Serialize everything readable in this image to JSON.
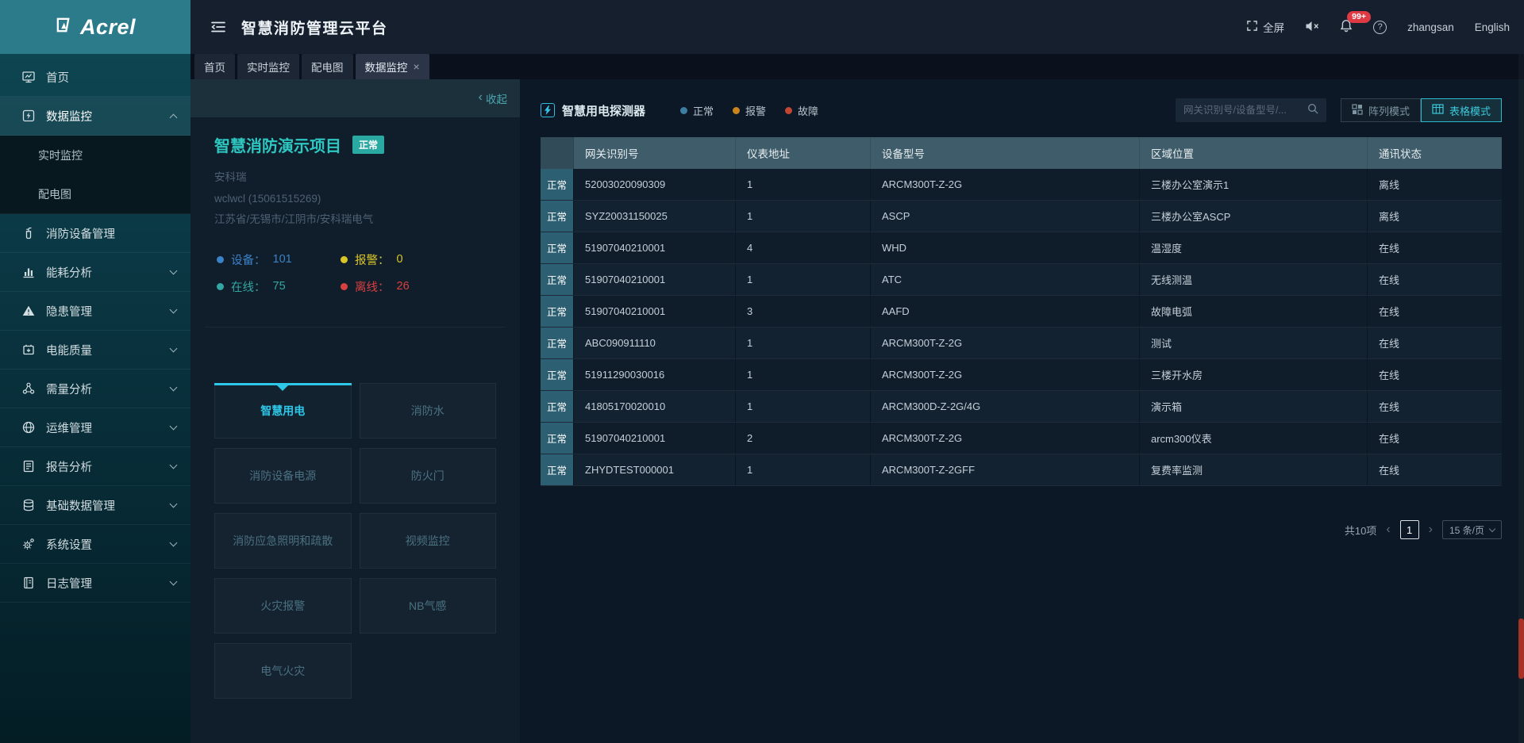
{
  "brand": {
    "logo": "Acrel"
  },
  "header": {
    "title": "智慧消防管理云平台",
    "fullscreen_label": "全屏",
    "notification_badge": "99+",
    "username": "zhangsan",
    "language": "English"
  },
  "icons": {
    "help": "?",
    "chevron_left": "‹",
    "tab_close": "×",
    "prev": "‹",
    "next": "›"
  },
  "tabs": [
    {
      "label": "首页",
      "closable": false,
      "active": false
    },
    {
      "label": "实时监控",
      "closable": false,
      "active": false
    },
    {
      "label": "配电图",
      "closable": false,
      "active": false
    },
    {
      "label": "数据监控",
      "closable": true,
      "active": true
    }
  ],
  "sidebar": {
    "items": [
      {
        "label": "首页",
        "icon": "home",
        "collapsible": false
      },
      {
        "label": "数据监控",
        "icon": "bolt",
        "collapsible": true,
        "expanded": true,
        "children": [
          "实时监控",
          "配电图"
        ]
      },
      {
        "label": "消防设备管理",
        "icon": "extinguisher",
        "collapsible": false
      },
      {
        "label": "能耗分析",
        "icon": "chart",
        "collapsible": true
      },
      {
        "label": "隐患管理",
        "icon": "warning",
        "collapsible": true
      },
      {
        "label": "电能质量",
        "icon": "battery",
        "collapsible": true
      },
      {
        "label": "需量分析",
        "icon": "nodes",
        "collapsible": true
      },
      {
        "label": "运维管理",
        "icon": "globe",
        "collapsible": true
      },
      {
        "label": "报告分析",
        "icon": "report",
        "collapsible": true
      },
      {
        "label": "基础数据管理",
        "icon": "database",
        "collapsible": true
      },
      {
        "label": "系统设置",
        "icon": "gear",
        "collapsible": true
      },
      {
        "label": "日志管理",
        "icon": "log",
        "collapsible": true
      }
    ]
  },
  "project_panel": {
    "collapse_label": "收起",
    "title": "智慧消防演示项目",
    "status_badge": "正常",
    "company": "安科瑞",
    "contact": "wclwcl (15061515269)",
    "address": "江苏省/无锡市/江阴市/安科瑞电气",
    "stats": [
      {
        "label": "设备：",
        "value": "101",
        "color": "#3b82c8"
      },
      {
        "label": "报警：",
        "value": "0",
        "color": "#d9c626"
      },
      {
        "label": "在线：",
        "value": "75",
        "color": "#33a6a2"
      },
      {
        "label": "离线：",
        "value": "26",
        "color": "#d84040"
      }
    ],
    "categories": [
      {
        "label": "智慧用电",
        "active": true
      },
      {
        "label": "消防水",
        "active": false
      },
      {
        "label": "消防设备电源",
        "active": false
      },
      {
        "label": "防火门",
        "active": false
      },
      {
        "label": "消防应急照明和疏散",
        "active": false
      },
      {
        "label": "视频监控",
        "active": false
      },
      {
        "label": "火灾报警",
        "active": false
      },
      {
        "label": "NB气感",
        "active": false
      },
      {
        "label": "电气火灾",
        "active": false
      }
    ]
  },
  "main": {
    "section_title": "智慧用电探测器",
    "legend": [
      {
        "label": "正常",
        "color": "#3d7fa0"
      },
      {
        "label": "报警",
        "color": "#c9851c"
      },
      {
        "label": "故障",
        "color": "#c24632"
      }
    ],
    "search_placeholder": "网关识别号/设备型号/...",
    "mode_buttons": [
      {
        "label": "阵列模式",
        "active": false
      },
      {
        "label": "表格模式",
        "active": true
      }
    ],
    "table": {
      "columns": [
        "",
        "网关识别号",
        "仪表地址",
        "设备型号",
        "区域位置",
        "通讯状态"
      ],
      "rows": [
        {
          "status": "正常",
          "gateway": "52003020090309",
          "addr": "1",
          "model": "ARCM300T-Z-2G",
          "location": "三楼办公室演示1",
          "comm": "离线"
        },
        {
          "status": "正常",
          "gateway": "SYZ20031150025",
          "addr": "1",
          "model": "ASCP",
          "location": "三楼办公室ASCP",
          "comm": "离线"
        },
        {
          "status": "正常",
          "gateway": "51907040210001",
          "addr": "4",
          "model": "WHD",
          "location": "温湿度",
          "comm": "在线"
        },
        {
          "status": "正常",
          "gateway": "51907040210001",
          "addr": "1",
          "model": "ATC",
          "location": "无线测温",
          "comm": "在线"
        },
        {
          "status": "正常",
          "gateway": "51907040210001",
          "addr": "3",
          "model": "AAFD",
          "location": "故障电弧",
          "comm": "在线"
        },
        {
          "status": "正常",
          "gateway": "ABC090911110",
          "addr": "1",
          "model": "ARCM300T-Z-2G",
          "location": "测试",
          "comm": "在线"
        },
        {
          "status": "正常",
          "gateway": "51911290030016",
          "addr": "1",
          "model": "ARCM300T-Z-2G",
          "location": "三楼开水房",
          "comm": "在线"
        },
        {
          "status": "正常",
          "gateway": "41805170020010",
          "addr": "1",
          "model": "ARCM300D-Z-2G/4G",
          "location": "演示箱",
          "comm": "在线"
        },
        {
          "status": "正常",
          "gateway": "51907040210001",
          "addr": "2",
          "model": "ARCM300T-Z-2G",
          "location": "arcm300仪表",
          "comm": "在线"
        },
        {
          "status": "正常",
          "gateway": "ZHYDTEST000001",
          "addr": "1",
          "model": "ARCM300T-Z-2GFF",
          "location": "复费率监测",
          "comm": "在线"
        }
      ]
    },
    "pagination": {
      "total": "共10项",
      "page": "1",
      "page_size": "15 条/页"
    }
  },
  "colors": {
    "brand_teal": "#2b7b8b",
    "accent_cyan": "#2dc7e8",
    "project_title_teal": "#2ec7c1",
    "badge_teal": "#2aa9a3",
    "table_header": "#3e5c69",
    "status_cell": "#2c5f71",
    "notification_red": "#dd3a44",
    "scrollbar_red": "#a93226"
  }
}
